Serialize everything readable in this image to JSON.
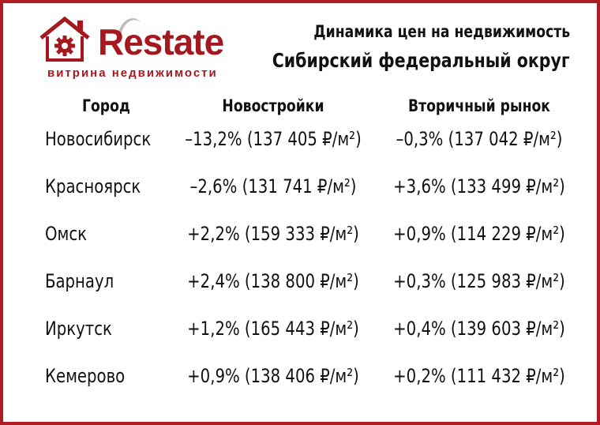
{
  "logo": {
    "brand": "Restate",
    "tagline": "витрина недвижимости"
  },
  "title": {
    "line1": "Динамика цен на недвижимость",
    "line2": "Сибирский федеральный округ"
  },
  "table": {
    "headers": [
      "Город",
      "Новостройки",
      "Вторичный рынок"
    ],
    "rows": [
      [
        "Новосибирск",
        "–13,2% (137 405 ₽/м²)",
        "–0,3% (137 042 ₽/м²)"
      ],
      [
        "Красноярск",
        "–2,6% (131 741 ₽/м²)",
        "+3,6% (133 499 ₽/м²)"
      ],
      [
        "Омск",
        "+2,2% (159 333 ₽/м²)",
        "+0,9% (114 229 ₽/м²)"
      ],
      [
        "Барнаул",
        "+2,4% (138 800 ₽/м²)",
        "+0,3% (125 983 ₽/м²)"
      ],
      [
        "Иркутск",
        "+1,2% (165 443 ₽/м²)",
        "+0,4% (139 603 ₽/м²)"
      ],
      [
        "Кемерово",
        "+0,9% (138 406 ₽/м²)",
        "+0,2% (111 432 ₽/м²)"
      ]
    ]
  },
  "colors": {
    "brand": "#a3191f",
    "frame": "#b01c24",
    "text": "#111111"
  }
}
